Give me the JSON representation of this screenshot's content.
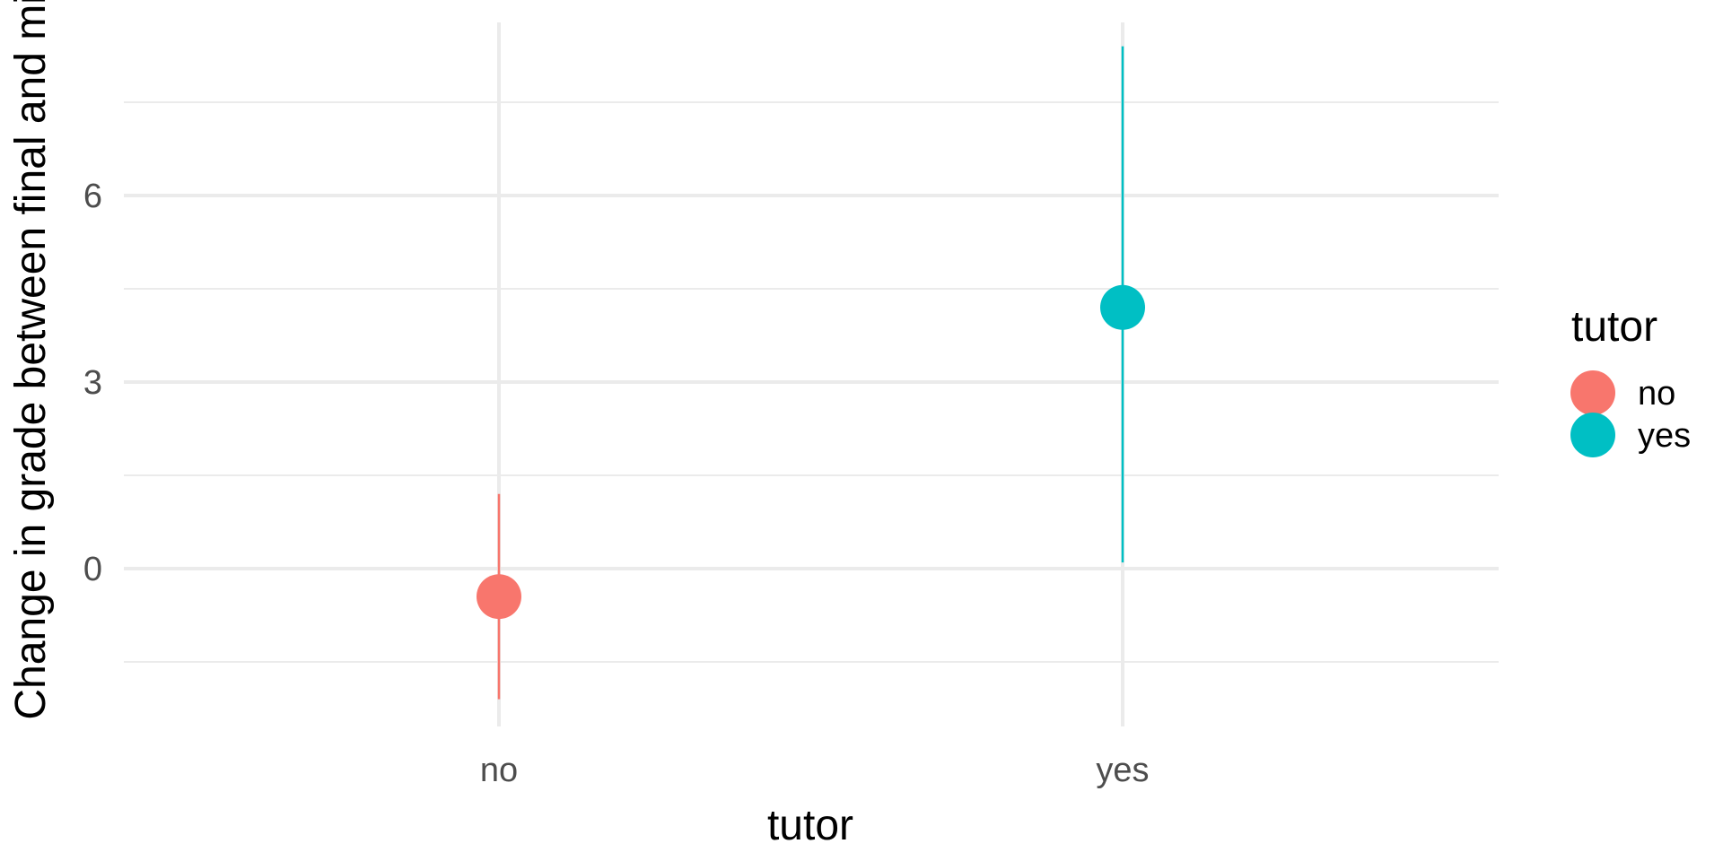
{
  "chart_data": {
    "type": "scatter",
    "geom": "pointrange",
    "title": "",
    "xlabel": "tutor",
    "ylabel": "Change in grade between final and mid",
    "categories": [
      "no",
      "yes"
    ],
    "series": [
      {
        "name": "no",
        "x": "no",
        "y": -0.45,
        "ymin": -2.1,
        "ymax": 1.2,
        "color": "#F8766D"
      },
      {
        "name": "yes",
        "x": "yes",
        "y": 4.2,
        "ymin": 0.1,
        "ymax": 8.4,
        "color": "#00BFC4"
      }
    ],
    "yticks": [
      0,
      3,
      6
    ],
    "ytick_labels": [
      "0",
      "3",
      "6"
    ],
    "ylim": [
      -2.1,
      8.4
    ],
    "grid": true,
    "legend": {
      "title": "tutor",
      "position": "right",
      "entries": [
        {
          "label": "no",
          "color": "#F8766D"
        },
        {
          "label": "yes",
          "color": "#00BFC4"
        }
      ]
    }
  }
}
